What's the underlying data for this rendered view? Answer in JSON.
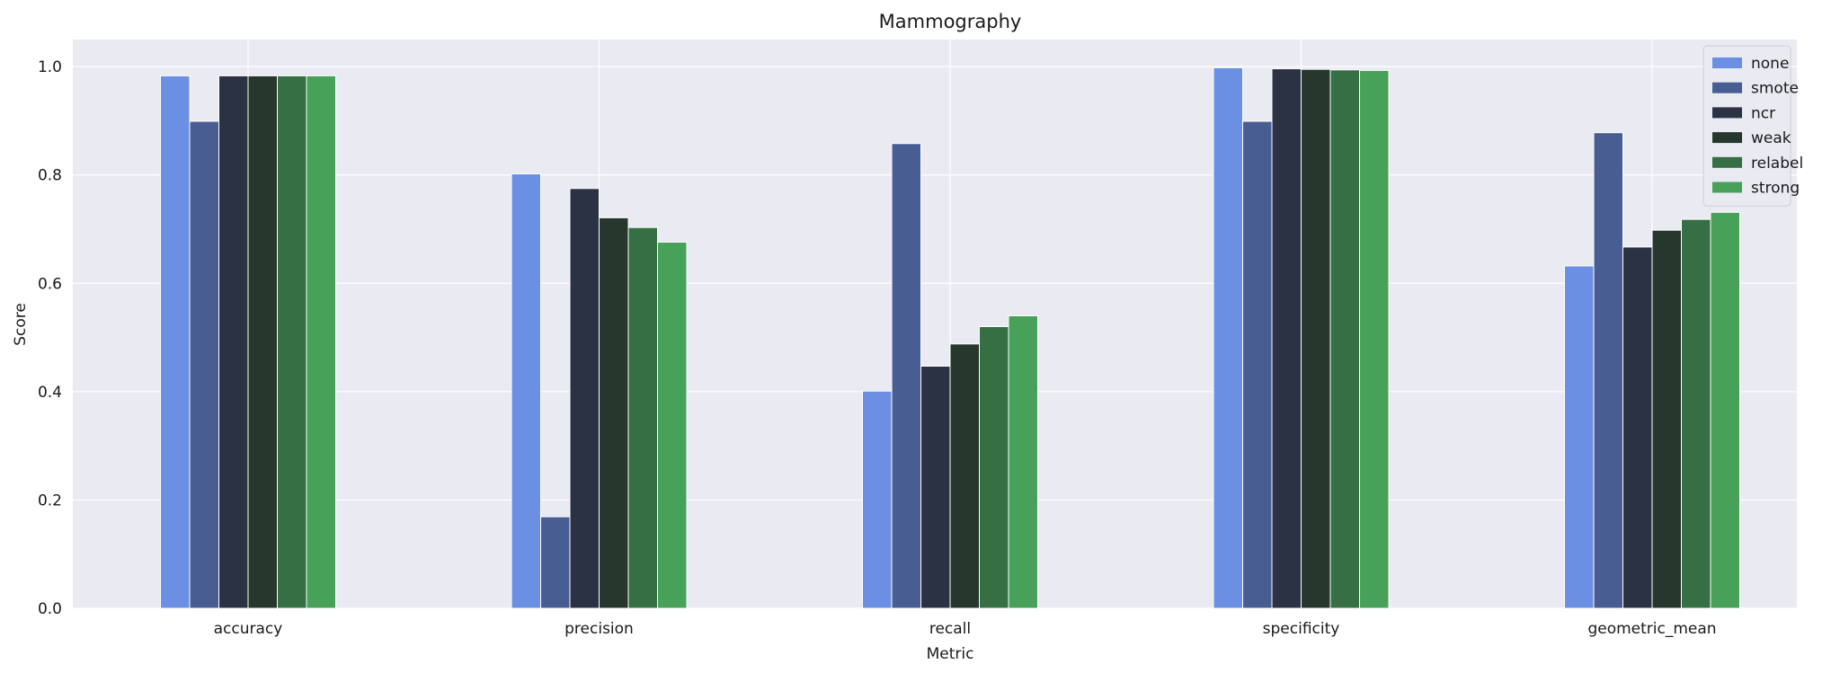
{
  "chart_data": {
    "type": "bar",
    "title": "Mammography",
    "xlabel": "Metric",
    "ylabel": "Score",
    "ylim": [
      0,
      1.05
    ],
    "yticks": [
      "0.0",
      "0.2",
      "0.4",
      "0.6",
      "0.8",
      "1.0"
    ],
    "grid": true,
    "legend_position": "top-right",
    "categories": [
      "accuracy",
      "precision",
      "recall",
      "specificity",
      "geometric_mean"
    ],
    "series": [
      {
        "name": "none",
        "color": "#6a8fe3",
        "values": [
          0.983,
          0.802,
          0.401,
          0.998,
          0.632
        ]
      },
      {
        "name": "smote",
        "color": "#485e93",
        "values": [
          0.899,
          0.169,
          0.858,
          0.899,
          0.878
        ]
      },
      {
        "name": "ncr",
        "color": "#2b3243",
        "values": [
          0.983,
          0.775,
          0.447,
          0.996,
          0.667
        ]
      },
      {
        "name": "weak",
        "color": "#26372d",
        "values": [
          0.983,
          0.721,
          0.488,
          0.995,
          0.698
        ]
      },
      {
        "name": "relabel",
        "color": "#356f43",
        "values": [
          0.983,
          0.703,
          0.52,
          0.994,
          0.718
        ]
      },
      {
        "name": "strong",
        "color": "#47a159",
        "values": [
          0.983,
          0.676,
          0.54,
          0.993,
          0.731
        ]
      }
    ]
  }
}
